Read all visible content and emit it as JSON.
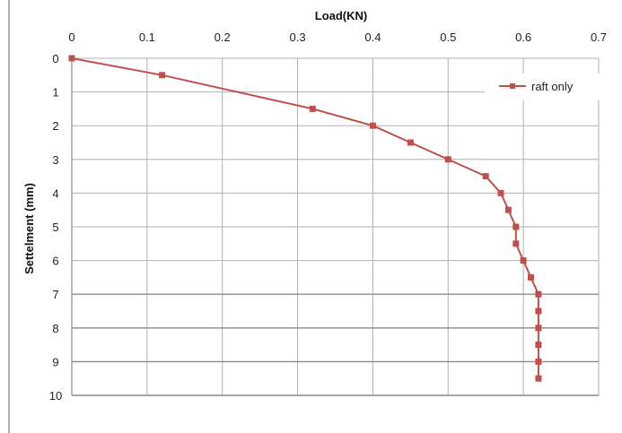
{
  "chart_data": {
    "type": "line",
    "title": "",
    "xlabel": "Load(KN)",
    "ylabel": "Settelment (mm)",
    "xlim": [
      0,
      0.7
    ],
    "ylim": [
      0,
      10
    ],
    "y_inverted": true,
    "x_axis_position": "top",
    "x_ticks": [
      "0",
      "0.1",
      "0.2",
      "0.3",
      "0.4",
      "0.5",
      "0.6",
      "0.7"
    ],
    "y_ticks": [
      "0",
      "1",
      "2",
      "3",
      "4",
      "5",
      "6",
      "7",
      "8",
      "9",
      "10"
    ],
    "grid": true,
    "legend_position": "top-right",
    "series": [
      {
        "name": "raft only",
        "color": "#c0504d",
        "marker": "square",
        "x": [
          0,
          0.12,
          0.32,
          0.4,
          0.45,
          0.5,
          0.55,
          0.57,
          0.58,
          0.59,
          0.59,
          0.6,
          0.61,
          0.62,
          0.62,
          0.62,
          0.62,
          0.62,
          0.62
        ],
        "y": [
          0,
          0.5,
          1.5,
          2.0,
          2.5,
          3.0,
          3.5,
          4.0,
          4.5,
          5.0,
          5.5,
          6.0,
          6.5,
          7.0,
          7.5,
          8.0,
          8.5,
          9.0,
          9.5
        ]
      }
    ]
  }
}
